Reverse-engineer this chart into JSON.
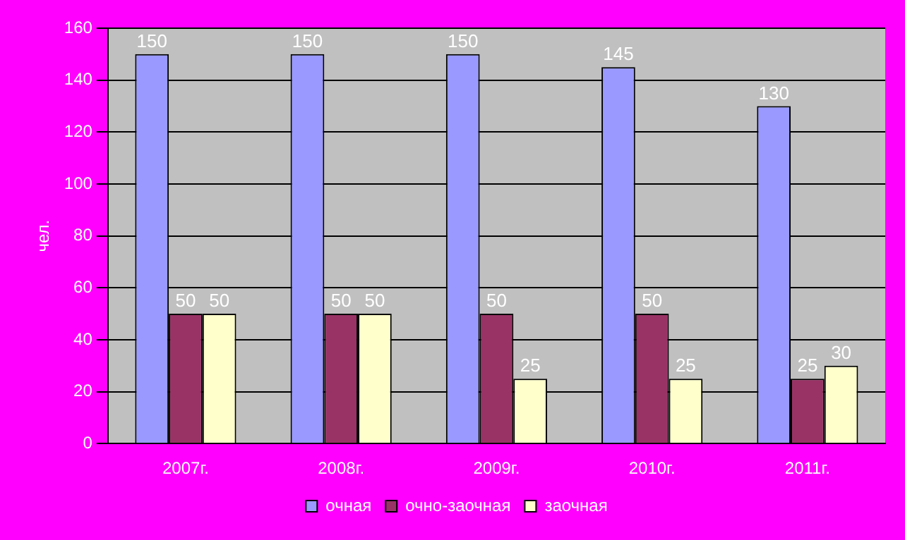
{
  "chart_data": {
    "type": "bar",
    "ylabel": "чел.",
    "categories": [
      "2007г.",
      "2008г.",
      "2009г.",
      "2010г.",
      "2011г."
    ],
    "series": [
      {
        "name": "очная",
        "color": "#9999ff",
        "values": [
          150,
          150,
          150,
          145,
          130
        ]
      },
      {
        "name": "очно-заочная",
        "color": "#993366",
        "values": [
          50,
          50,
          50,
          50,
          25
        ]
      },
      {
        "name": "заочная",
        "color": "#ffffcc",
        "values": [
          50,
          50,
          25,
          25,
          30
        ]
      }
    ],
    "ylim": [
      0,
      160
    ],
    "yticks": [
      0,
      20,
      40,
      60,
      80,
      100,
      120,
      140,
      160
    ],
    "grid": "y",
    "legend": "bottom",
    "data_labels": true
  }
}
